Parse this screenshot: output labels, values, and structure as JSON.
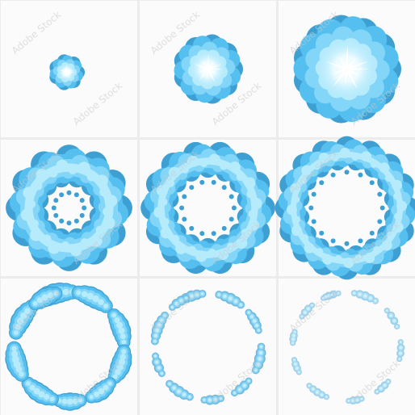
{
  "sprite_sheet": {
    "grid": {
      "rows": 3,
      "columns": 3
    },
    "watermark_text": "Adobe Stock",
    "colors": {
      "background": "#ececec",
      "cell": "#fbfbfb",
      "outline": "#3e9fd2",
      "base": "#55bff0",
      "mid": "#84d6f8",
      "light": "#b6ebfc",
      "glow": "#eefbff",
      "star": "#ffffff"
    },
    "frames": [
      {
        "index": 1,
        "stage": "spark",
        "ring_gap": 0,
        "star": true,
        "fade": 1.0
      },
      {
        "index": 2,
        "stage": "cloud-grow",
        "ring_gap": 0,
        "star": true,
        "fade": 1.0
      },
      {
        "index": 3,
        "stage": "cloud-burst",
        "ring_gap": 0,
        "star": true,
        "fade": 1.0
      },
      {
        "index": 4,
        "stage": "ring-open",
        "ring_gap": 0.28,
        "star": false,
        "fade": 1.0
      },
      {
        "index": 5,
        "stage": "ring-expand",
        "ring_gap": 0.55,
        "star": false,
        "fade": 1.0
      },
      {
        "index": 6,
        "stage": "ring-thin",
        "ring_gap": 0.72,
        "star": false,
        "fade": 1.0
      },
      {
        "index": 7,
        "stage": "ring-break",
        "ring_gap": 0.84,
        "star": false,
        "fade": 1.0
      },
      {
        "index": 8,
        "stage": "fragments",
        "ring_gap": 0.9,
        "star": false,
        "fade": 0.75
      },
      {
        "index": 9,
        "stage": "dissipate",
        "ring_gap": 0.93,
        "star": false,
        "fade": 0.5
      }
    ]
  }
}
